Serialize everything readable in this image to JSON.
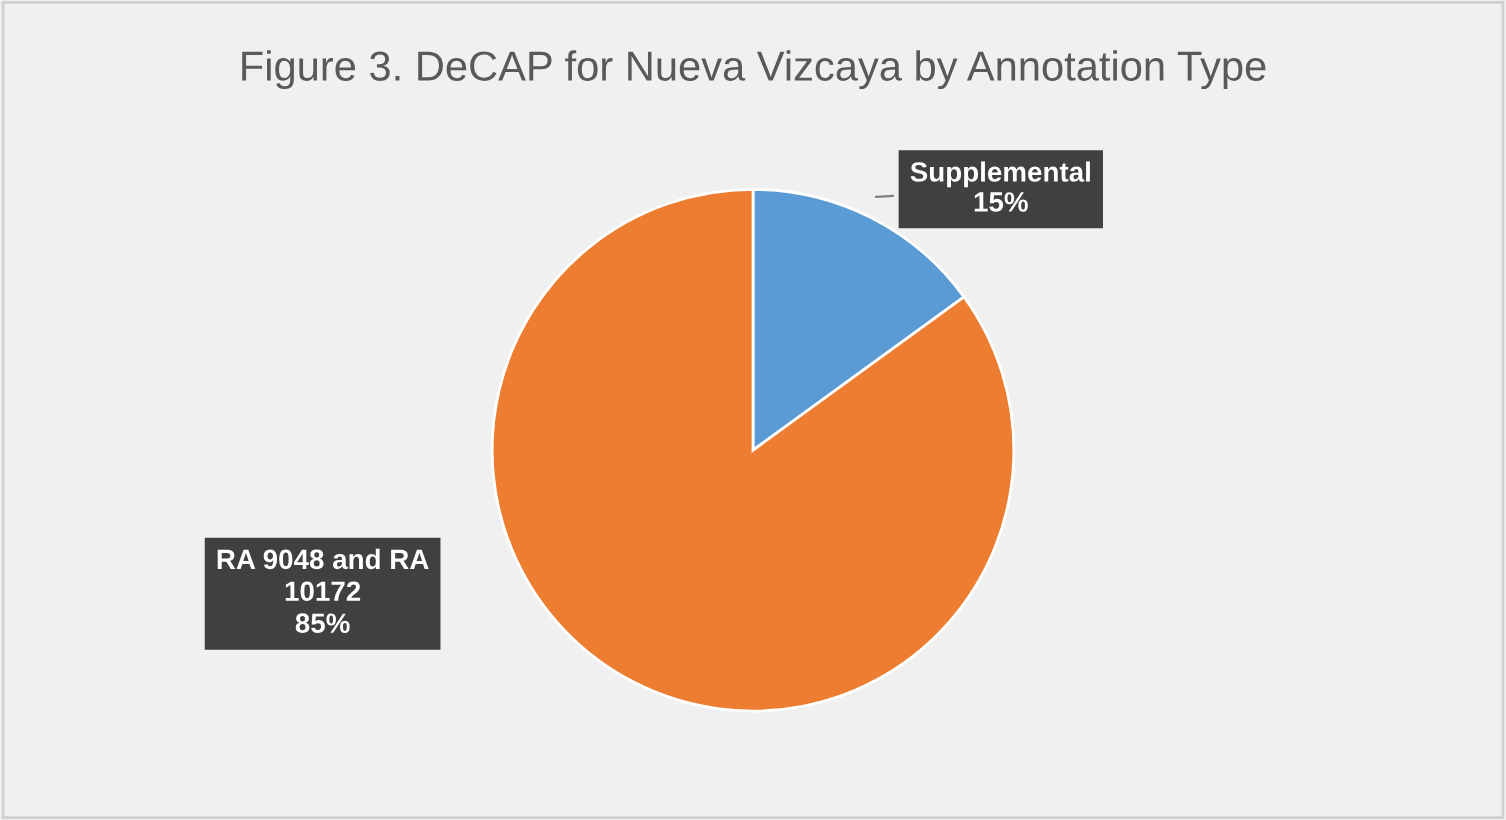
{
  "chart_data": {
    "type": "pie",
    "title": "Figure 3. DeCAP for Nueva Vizcaya by Annotation Type",
    "categories": [
      "Supplemental",
      "RA 9048 and RA 10172"
    ],
    "values": [
      15,
      85
    ],
    "value_labels": [
      "15%",
      "85%"
    ],
    "colors": [
      "#5b9bd5",
      "#ed7d31"
    ],
    "legend": false
  }
}
